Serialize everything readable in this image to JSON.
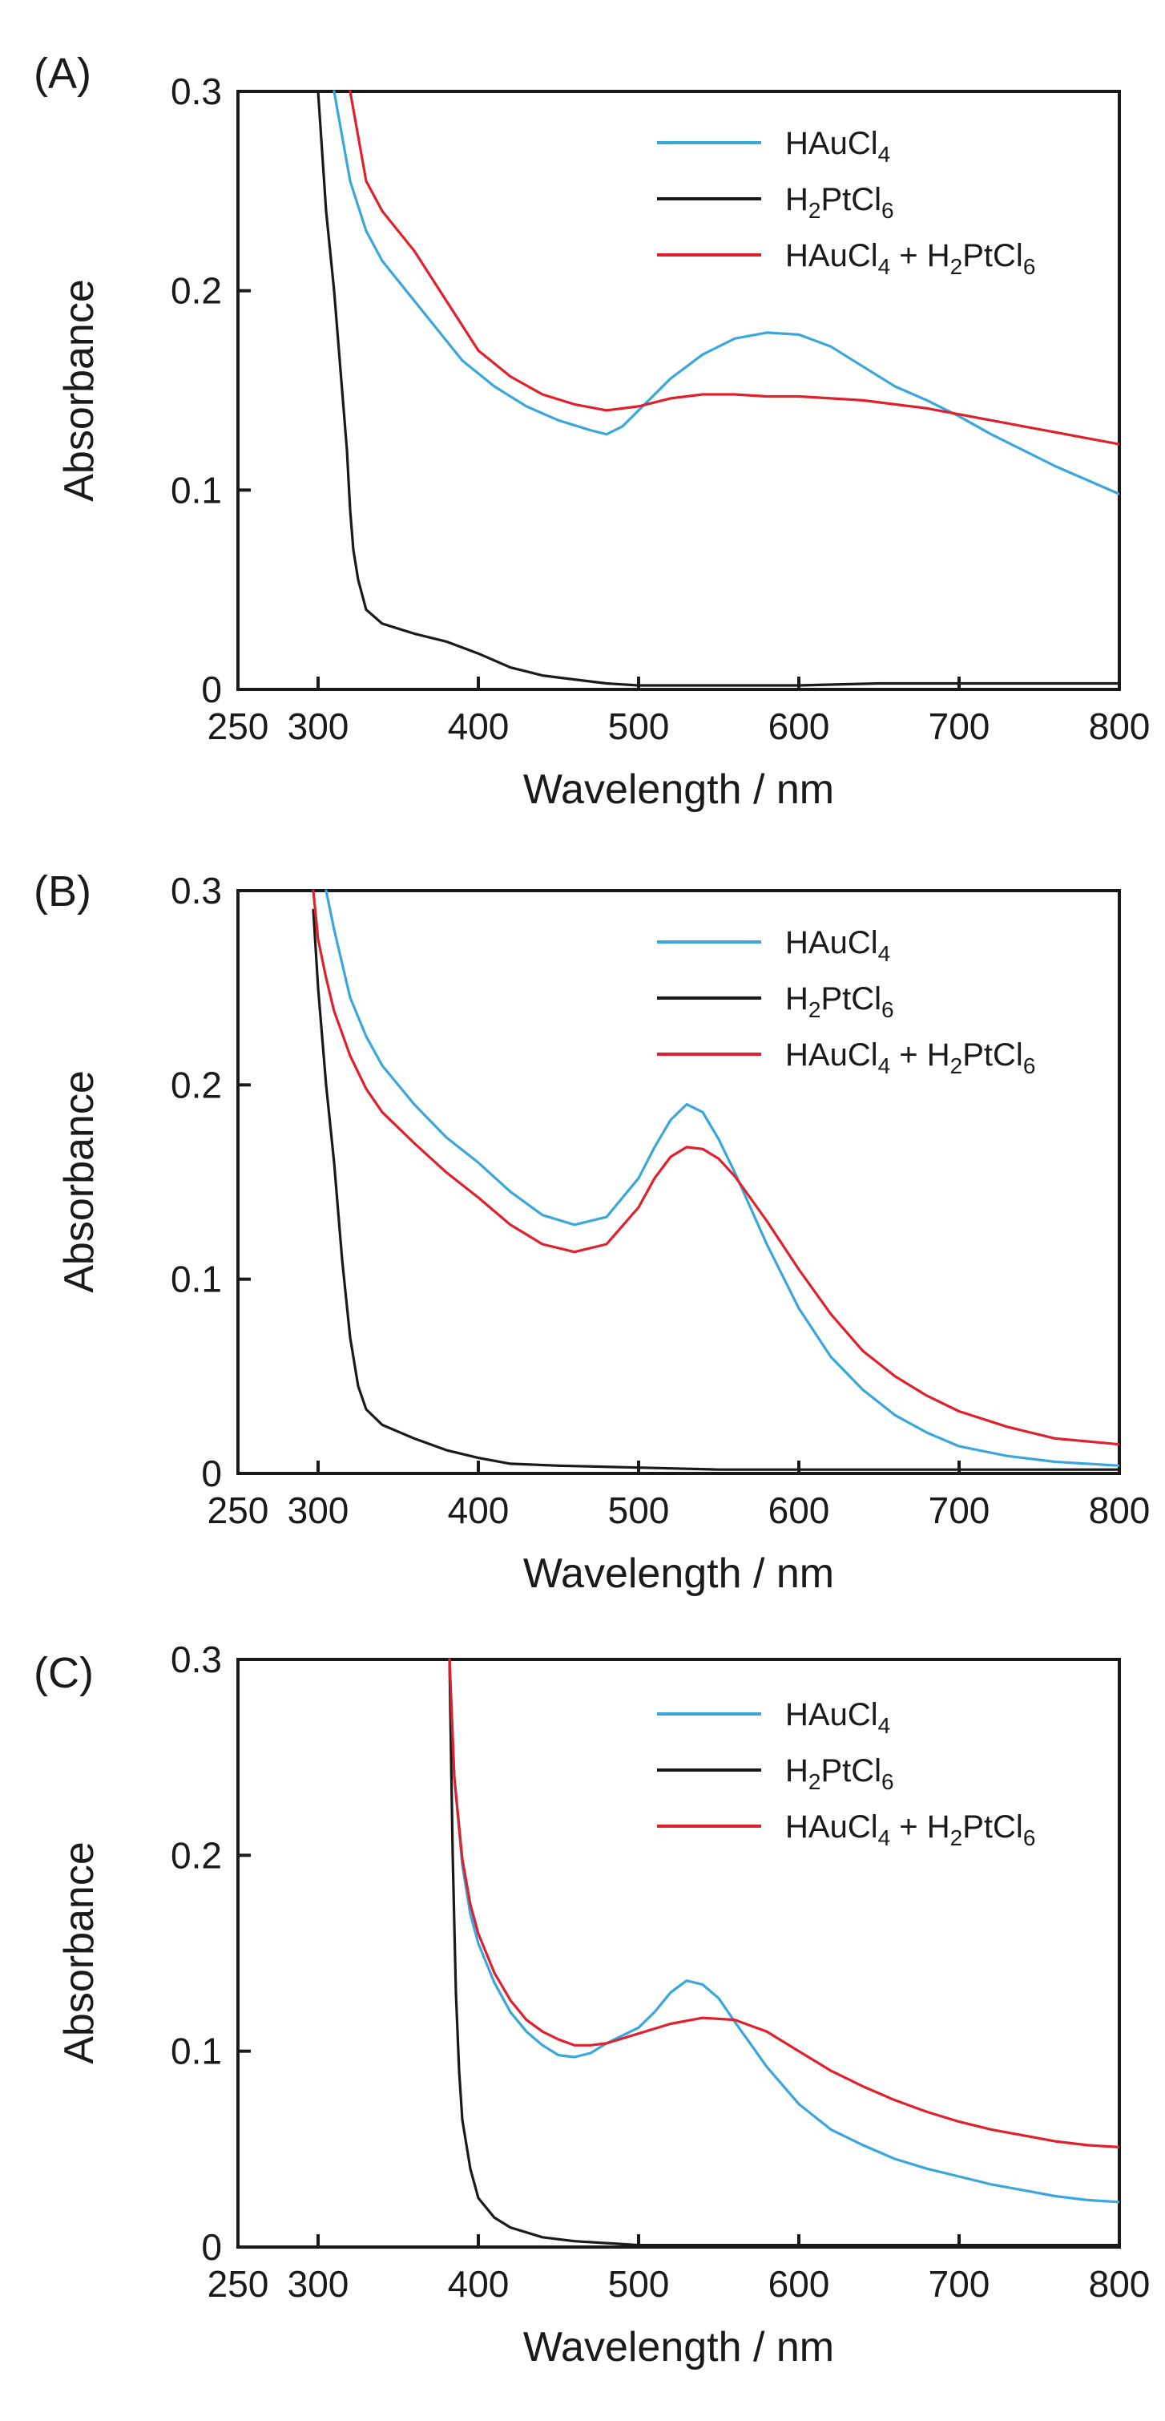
{
  "colors": {
    "HAuCl4": "#3aa7dc",
    "H2PtCl6": "#1a1a1a",
    "mix": "#e0202c"
  },
  "chart_data": [
    {
      "panel_label": "(A)",
      "type": "line",
      "xlabel": "Wavelength / nm",
      "ylabel": "Absorbance",
      "xlim": [
        250,
        800
      ],
      "ylim": [
        0,
        0.3
      ],
      "x_ticks": [
        "250",
        "300",
        "400",
        "500",
        "600",
        "700",
        "800"
      ],
      "y_ticks": [
        "0",
        "0.1",
        "0.2",
        "0.3"
      ],
      "legend": {
        "placement": "top-right",
        "entries": [
          {
            "main": "HAuCl",
            "sub": "4",
            "rest": ""
          },
          {
            "main": "H",
            "sub": "2",
            "rest": "PtCl",
            "sub2": "6"
          },
          {
            "main": "HAuCl",
            "sub": "4",
            "rest": " + H",
            "sub2": "2",
            "rest2": "PtCl",
            "sub3": "6"
          }
        ]
      },
      "series": [
        {
          "name": "HAuCl4",
          "color_key": "HAuCl4",
          "x": [
            310,
            320,
            330,
            340,
            350,
            370,
            390,
            410,
            430,
            450,
            470,
            480,
            490,
            500,
            520,
            540,
            560,
            580,
            600,
            620,
            640,
            660,
            680,
            700,
            720,
            740,
            760,
            780,
            800
          ],
          "y": [
            0.3,
            0.255,
            0.23,
            0.215,
            0.205,
            0.185,
            0.165,
            0.152,
            0.142,
            0.135,
            0.13,
            0.128,
            0.132,
            0.14,
            0.156,
            0.168,
            0.176,
            0.179,
            0.178,
            0.172,
            0.162,
            0.152,
            0.145,
            0.137,
            0.128,
            0.12,
            0.112,
            0.105,
            0.098
          ]
        },
        {
          "name": "H2PtCl6",
          "color_key": "H2PtCl6",
          "x": [
            300,
            305,
            310,
            315,
            318,
            320,
            322,
            325,
            330,
            340,
            360,
            380,
            400,
            420,
            440,
            460,
            480,
            500,
            520,
            550,
            600,
            650,
            700,
            750,
            800
          ],
          "y": [
            0.3,
            0.24,
            0.2,
            0.15,
            0.12,
            0.09,
            0.07,
            0.055,
            0.04,
            0.033,
            0.028,
            0.024,
            0.018,
            0.011,
            0.007,
            0.005,
            0.003,
            0.002,
            0.002,
            0.002,
            0.002,
            0.003,
            0.003,
            0.003,
            0.003
          ]
        },
        {
          "name": "HAuCl4 + H2PtCl6",
          "color_key": "mix",
          "x": [
            320,
            330,
            340,
            350,
            360,
            380,
            400,
            420,
            440,
            460,
            480,
            500,
            520,
            540,
            560,
            580,
            600,
            620,
            640,
            660,
            680,
            700,
            720,
            740,
            760,
            780,
            800
          ],
          "y": [
            0.3,
            0.255,
            0.24,
            0.23,
            0.22,
            0.195,
            0.17,
            0.157,
            0.148,
            0.143,
            0.14,
            0.142,
            0.146,
            0.148,
            0.148,
            0.147,
            0.147,
            0.146,
            0.145,
            0.143,
            0.141,
            0.138,
            0.135,
            0.132,
            0.129,
            0.126,
            0.123
          ]
        }
      ]
    },
    {
      "panel_label": "(B)",
      "type": "line",
      "xlabel": "Wavelength / nm",
      "ylabel": "Absorbance",
      "xlim": [
        250,
        800
      ],
      "ylim": [
        0,
        0.3
      ],
      "x_ticks": [
        "250",
        "300",
        "400",
        "500",
        "600",
        "700",
        "800"
      ],
      "y_ticks": [
        "0",
        "0.1",
        "0.2",
        "0.3"
      ],
      "legend": {
        "placement": "top-right",
        "entries": [
          {
            "main": "HAuCl",
            "sub": "4",
            "rest": ""
          },
          {
            "main": "H",
            "sub": "2",
            "rest": "PtCl",
            "sub2": "6"
          },
          {
            "main": "HAuCl",
            "sub": "4",
            "rest": " + H",
            "sub2": "2",
            "rest2": "PtCl",
            "sub3": "6"
          }
        ]
      },
      "series": [
        {
          "name": "HAuCl4",
          "color_key": "HAuCl4",
          "x": [
            305,
            310,
            320,
            330,
            340,
            360,
            380,
            400,
            420,
            440,
            460,
            480,
            500,
            510,
            520,
            530,
            540,
            550,
            560,
            580,
            600,
            620,
            640,
            660,
            680,
            700,
            730,
            760,
            800
          ],
          "y": [
            0.3,
            0.28,
            0.245,
            0.225,
            0.21,
            0.19,
            0.173,
            0.16,
            0.145,
            0.133,
            0.128,
            0.132,
            0.152,
            0.168,
            0.182,
            0.19,
            0.186,
            0.172,
            0.155,
            0.118,
            0.085,
            0.06,
            0.043,
            0.03,
            0.021,
            0.014,
            0.009,
            0.006,
            0.004
          ]
        },
        {
          "name": "H2PtCl6",
          "color_key": "H2PtCl6",
          "x": [
            297,
            300,
            305,
            310,
            315,
            320,
            325,
            330,
            340,
            360,
            380,
            400,
            420,
            450,
            500,
            550,
            600,
            700,
            800
          ],
          "y": [
            0.29,
            0.25,
            0.2,
            0.16,
            0.11,
            0.07,
            0.045,
            0.033,
            0.025,
            0.018,
            0.012,
            0.008,
            0.005,
            0.004,
            0.003,
            0.002,
            0.002,
            0.002,
            0.002
          ]
        },
        {
          "name": "HAuCl4 + H2PtCl6",
          "color_key": "mix",
          "x": [
            297,
            300,
            305,
            310,
            320,
            330,
            340,
            360,
            380,
            400,
            420,
            440,
            460,
            480,
            500,
            510,
            520,
            530,
            540,
            550,
            560,
            580,
            600,
            620,
            640,
            660,
            680,
            700,
            730,
            760,
            800
          ],
          "y": [
            0.3,
            0.275,
            0.255,
            0.238,
            0.215,
            0.198,
            0.186,
            0.17,
            0.155,
            0.142,
            0.128,
            0.118,
            0.114,
            0.118,
            0.137,
            0.152,
            0.163,
            0.168,
            0.167,
            0.162,
            0.153,
            0.13,
            0.105,
            0.082,
            0.063,
            0.05,
            0.04,
            0.032,
            0.024,
            0.018,
            0.015
          ]
        }
      ]
    },
    {
      "panel_label": "(C)",
      "type": "line",
      "xlabel": "Wavelength / nm",
      "ylabel": "Absorbance",
      "xlim": [
        250,
        800
      ],
      "ylim": [
        0,
        0.3
      ],
      "x_ticks": [
        "250",
        "300",
        "400",
        "500",
        "600",
        "700",
        "800"
      ],
      "y_ticks": [
        "0",
        "0.1",
        "0.2",
        "0.3"
      ],
      "legend": {
        "placement": "top-right",
        "entries": [
          {
            "main": "HAuCl",
            "sub": "4",
            "rest": ""
          },
          {
            "main": "H",
            "sub": "2",
            "rest": "PtCl",
            "sub2": "6"
          },
          {
            "main": "HAuCl",
            "sub": "4",
            "rest": " + H",
            "sub2": "2",
            "rest2": "PtCl",
            "sub3": "6"
          }
        ]
      },
      "series": [
        {
          "name": "HAuCl4",
          "color_key": "HAuCl4",
          "x": [
            382,
            385,
            390,
            395,
            400,
            410,
            420,
            430,
            440,
            450,
            460,
            470,
            480,
            490,
            500,
            510,
            520,
            530,
            540,
            550,
            560,
            580,
            600,
            620,
            640,
            660,
            680,
            700,
            720,
            740,
            760,
            780,
            800
          ],
          "y": [
            0.3,
            0.24,
            0.195,
            0.17,
            0.155,
            0.135,
            0.12,
            0.11,
            0.103,
            0.098,
            0.097,
            0.099,
            0.104,
            0.108,
            0.112,
            0.12,
            0.13,
            0.136,
            0.134,
            0.127,
            0.115,
            0.092,
            0.073,
            0.06,
            0.052,
            0.045,
            0.04,
            0.036,
            0.032,
            0.029,
            0.026,
            0.024,
            0.023
          ]
        },
        {
          "name": "H2PtCl6",
          "color_key": "H2PtCl6",
          "x": [
            382,
            384,
            386,
            388,
            390,
            395,
            400,
            410,
            420,
            440,
            460,
            480,
            500,
            550,
            600,
            700,
            800
          ],
          "y": [
            0.3,
            0.2,
            0.13,
            0.09,
            0.065,
            0.04,
            0.025,
            0.015,
            0.01,
            0.005,
            0.003,
            0.002,
            0.001,
            0.001,
            0.001,
            0.001,
            0.001
          ]
        },
        {
          "name": "HAuCl4 + H2PtCl6",
          "color_key": "mix",
          "x": [
            382,
            385,
            390,
            395,
            400,
            410,
            420,
            430,
            440,
            450,
            460,
            470,
            480,
            500,
            520,
            540,
            560,
            580,
            600,
            620,
            640,
            660,
            680,
            700,
            720,
            740,
            760,
            780,
            800
          ],
          "y": [
            0.3,
            0.24,
            0.198,
            0.175,
            0.16,
            0.14,
            0.126,
            0.116,
            0.11,
            0.106,
            0.103,
            0.103,
            0.104,
            0.109,
            0.114,
            0.117,
            0.116,
            0.11,
            0.1,
            0.09,
            0.082,
            0.075,
            0.069,
            0.064,
            0.06,
            0.057,
            0.054,
            0.052,
            0.051
          ]
        }
      ]
    }
  ]
}
